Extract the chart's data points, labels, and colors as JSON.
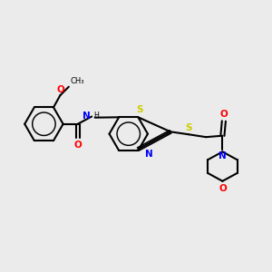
{
  "background_color": "#EBEBEB",
  "bond_color": "#000000",
  "atom_colors": {
    "N": "#0000FF",
    "O": "#FF0000",
    "S": "#CCCC00",
    "C": "#000000",
    "H": "#808080"
  },
  "figsize": [
    3.0,
    3.0
  ],
  "dpi": 100
}
